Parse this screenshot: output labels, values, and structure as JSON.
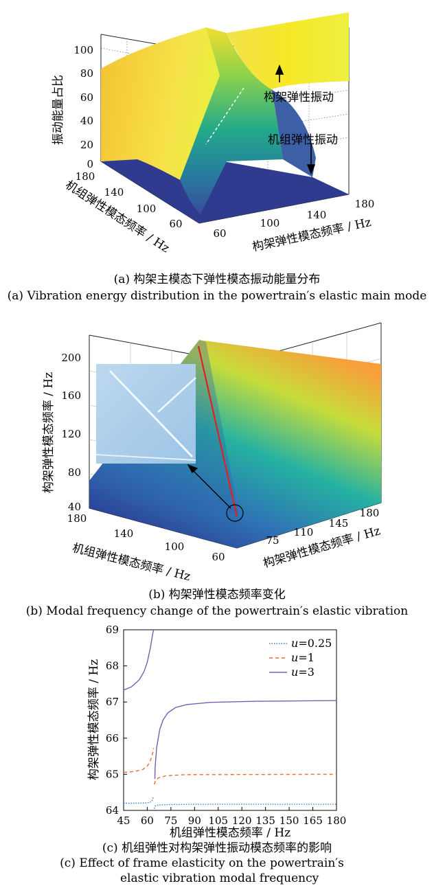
{
  "captions": {
    "a_cn": "(a)  构架主模态下弹性模态振动能量分布",
    "a_en": "(a)  Vibration energy distribution in the powertrain′s elastic main mode",
    "b_cn": "(b)  构架弹性模态频率变化",
    "b_en": "(b)  Modal frequency change of  the powertrain′s elastic vibration",
    "c_cn": "(c)  机组弹性对构架弹性振动模态频率的影响",
    "c_en1": "(c)  Effect of frame elasticity on the powertrain′s",
    "c_en2": "elastic vibration modal frequency"
  },
  "chart_data": [
    {
      "type": "surface3d",
      "zlabel": "振动能量占比",
      "xlabel": "机组弹性模态频率 / Hz",
      "ylabel": "构架弹性模态频率 / Hz",
      "z_ticks": [
        "0",
        "20",
        "40",
        "60",
        "80",
        "100"
      ],
      "x_ticks": [
        "180",
        "140",
        "100",
        "60"
      ],
      "y_ticks": [
        "60",
        "100",
        "140",
        "180"
      ],
      "annotations": [
        "构架弹性振动",
        "机组弹性振动"
      ],
      "colors": {
        "high": "#f6e827",
        "mid": "#35b779",
        "low": "#2c3c8c"
      }
    },
    {
      "type": "surface3d",
      "zlabel": "构架弹性模态频率 / Hz",
      "xlabel": "机组弹性模态频率 / Hz",
      "ylabel": "构架弹性模态频率 / Hz",
      "z_ticks": [
        "40",
        "80",
        "120",
        "160",
        "200"
      ],
      "x_ticks": [
        "180",
        "140",
        "100",
        "60"
      ],
      "y_ticks": [
        "75",
        "110",
        "145",
        "180"
      ],
      "colors": {
        "line": "#e02020",
        "high": "#f6e827",
        "low": "#2c3c8c"
      }
    },
    {
      "type": "line",
      "xlabel": "机组弹性模态频率 / Hz",
      "ylabel": "构架弹性模态频率 / Hz",
      "xlim": [
        45,
        180
      ],
      "ylim": [
        64,
        69
      ],
      "x_ticks": [
        "45",
        "60",
        "75",
        "90",
        "105",
        "120",
        "135",
        "150",
        "165",
        "180"
      ],
      "y_ticks": [
        "64",
        "65",
        "66",
        "67",
        "68",
        "69"
      ],
      "series": [
        {
          "name": "0.25",
          "prefix": "u",
          "prefix_suffix": "=",
          "color": "#3a7fc4",
          "dash": "1.5,2",
          "segments": [
            [
              [
                45,
                64.2
              ],
              [
                55,
                64.2
              ],
              [
                60,
                64.21
              ],
              [
                62,
                64.23
              ],
              [
                63,
                64.27
              ],
              [
                64,
                64.38
              ]
            ],
            [
              [
                64.5,
                64.05
              ],
              [
                65,
                64.12
              ],
              [
                67,
                64.15
              ],
              [
                72,
                64.16
              ],
              [
                90,
                64.17
              ],
              [
                180,
                64.17
              ]
            ]
          ]
        },
        {
          "name": "1",
          "prefix": "u",
          "prefix_suffix": "=",
          "color": "#f06a2a",
          "dash": "5,4",
          "segments": [
            [
              [
                45,
                65.05
              ],
              [
                52,
                65.08
              ],
              [
                57,
                65.13
              ],
              [
                60,
                65.22
              ],
              [
                62,
                65.38
              ],
              [
                63.5,
                65.6
              ],
              [
                64,
                65.72
              ]
            ],
            [
              [
                64.5,
                64.72
              ],
              [
                65,
                64.8
              ],
              [
                67,
                64.9
              ],
              [
                72,
                64.96
              ],
              [
                85,
                64.99
              ],
              [
                180,
                65.0
              ]
            ]
          ]
        },
        {
          "name": "3",
          "prefix": "u",
          "prefix_suffix": "=",
          "color": "#7e5ab7",
          "dash": "",
          "segments": [
            [
              [
                45,
                67.33
              ],
              [
                50,
                67.42
              ],
              [
                55,
                67.62
              ],
              [
                58,
                67.85
              ],
              [
                60,
                68.1
              ],
              [
                62,
                68.5
              ],
              [
                63.5,
                68.9
              ],
              [
                64,
                69.0
              ]
            ],
            [
              [
                64.8,
                64.87
              ],
              [
                65,
                65.2
              ],
              [
                66,
                65.75
              ],
              [
                68,
                66.25
              ],
              [
                70,
                66.5
              ],
              [
                73,
                66.7
              ],
              [
                78,
                66.85
              ],
              [
                85,
                66.93
              ],
              [
                100,
                66.99
              ],
              [
                130,
                67.02
              ],
              [
                180,
                67.04
              ]
            ]
          ]
        }
      ]
    }
  ]
}
